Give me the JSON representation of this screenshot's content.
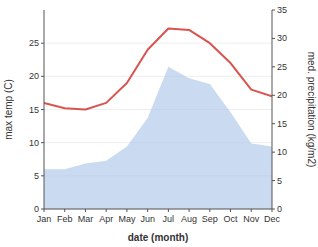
{
  "chart_data": {
    "type": "line",
    "categories": [
      "Jan",
      "Feb",
      "Mar",
      "Apr",
      "May",
      "Jun",
      "Jul",
      "Aug",
      "Sep",
      "Oct",
      "Nov",
      "Dec"
    ],
    "series": [
      {
        "type": "area",
        "axis": "y2",
        "color": "#aec6e8",
        "values": [
          7.0,
          7.0,
          8.0,
          8.5,
          11.0,
          16.0,
          25.0,
          23.0,
          22.0,
          17.0,
          11.5,
          11.0
        ]
      },
      {
        "type": "line",
        "color": "#d9534f",
        "values": [
          16.0,
          15.2,
          15.0,
          16.0,
          19.0,
          24.0,
          27.2,
          27.0,
          25.0,
          22.0,
          18.0,
          17.0
        ]
      }
    ],
    "x_label": "date (month)",
    "y_label": "max temp (C)",
    "y2_label": "med. precipitation (kg/m2)",
    "ylim": [
      0,
      30
    ],
    "yticks": [
      0,
      5,
      10,
      15,
      20,
      25
    ],
    "y2lim": [
      0,
      35
    ],
    "y2ticks": [
      0,
      5,
      10,
      15,
      20,
      25,
      30,
      35
    ]
  }
}
